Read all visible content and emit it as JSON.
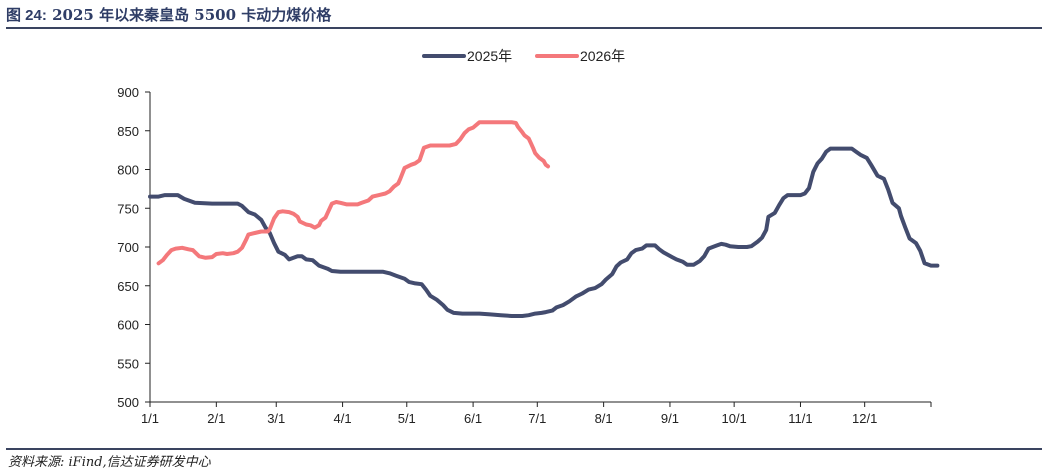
{
  "header": {
    "figure_number": "图 24:",
    "title": "2025 年以来秦皇岛 5500 卡动力煤价格"
  },
  "footer": {
    "source": "资料来源:   iFind,信达证券研发中心"
  },
  "colors": {
    "series_2025": "#434c6e",
    "series_2026": "#f4787b",
    "axis": "#222222",
    "rule": "#3a4460"
  },
  "chart_data": {
    "type": "line",
    "grid": false,
    "legend_position": "top-center",
    "ylim": [
      500,
      900
    ],
    "yticks": [
      500,
      550,
      600,
      650,
      700,
      750,
      800,
      850,
      900
    ],
    "xlim": [
      1,
      366
    ],
    "xticks": [
      {
        "label": "1/1",
        "day": 1
      },
      {
        "label": "2/1",
        "day": 32
      },
      {
        "label": "3/1",
        "day": 60
      },
      {
        "label": "4/1",
        "day": 91
      },
      {
        "label": "5/1",
        "day": 121
      },
      {
        "label": "6/1",
        "day": 152
      },
      {
        "label": "7/1",
        "day": 182
      },
      {
        "label": "8/1",
        "day": 213
      },
      {
        "label": "9/1",
        "day": 244
      },
      {
        "label": "10/1",
        "day": 274
      },
      {
        "label": "11/1",
        "day": 305
      },
      {
        "label": "12/1",
        "day": 335
      }
    ],
    "series": [
      {
        "name": "2025年",
        "points": [
          [
            1,
            765
          ],
          [
            5,
            765
          ],
          [
            8,
            767
          ],
          [
            14,
            767
          ],
          [
            17,
            762
          ],
          [
            22,
            757
          ],
          [
            30,
            756
          ],
          [
            38,
            756
          ],
          [
            40,
            756
          ],
          [
            42,
            756
          ],
          [
            44,
            753
          ],
          [
            47,
            745
          ],
          [
            50,
            742
          ],
          [
            53,
            735
          ],
          [
            55,
            725
          ],
          [
            57,
            718
          ],
          [
            59,
            705
          ],
          [
            61,
            694
          ],
          [
            64,
            690
          ],
          [
            66,
            684
          ],
          [
            70,
            688
          ],
          [
            72,
            688
          ],
          [
            74,
            684
          ],
          [
            77,
            683
          ],
          [
            80,
            676
          ],
          [
            84,
            672
          ],
          [
            86,
            669
          ],
          [
            90,
            668
          ],
          [
            95,
            668
          ],
          [
            100,
            668
          ],
          [
            105,
            668
          ],
          [
            110,
            668
          ],
          [
            113,
            666
          ],
          [
            116,
            663
          ],
          [
            120,
            659
          ],
          [
            122,
            655
          ],
          [
            125,
            653
          ],
          [
            128,
            652
          ],
          [
            130,
            645
          ],
          [
            132,
            637
          ],
          [
            135,
            632
          ],
          [
            138,
            625
          ],
          [
            140,
            619
          ],
          [
            143,
            615
          ],
          [
            147,
            614
          ],
          [
            150,
            614
          ],
          [
            155,
            614
          ],
          [
            160,
            613
          ],
          [
            165,
            612
          ],
          [
            170,
            611
          ],
          [
            175,
            611
          ],
          [
            178,
            612
          ],
          [
            181,
            614
          ],
          [
            184,
            615
          ],
          [
            186,
            616
          ],
          [
            189,
            618
          ],
          [
            191,
            622
          ],
          [
            194,
            625
          ],
          [
            197,
            630
          ],
          [
            200,
            636
          ],
          [
            203,
            640
          ],
          [
            206,
            645
          ],
          [
            209,
            647
          ],
          [
            212,
            652
          ],
          [
            214,
            658
          ],
          [
            217,
            665
          ],
          [
            219,
            675
          ],
          [
            221,
            680
          ],
          [
            224,
            684
          ],
          [
            226,
            692
          ],
          [
            228,
            696
          ],
          [
            231,
            698
          ],
          [
            233,
            702
          ],
          [
            235,
            702
          ],
          [
            237,
            702
          ],
          [
            239,
            697
          ],
          [
            241,
            693
          ],
          [
            243,
            690
          ],
          [
            245,
            687
          ],
          [
            247,
            684
          ],
          [
            250,
            681
          ],
          [
            252,
            677
          ],
          [
            255,
            677
          ],
          [
            258,
            682
          ],
          [
            260,
            688
          ],
          [
            262,
            698
          ],
          [
            264,
            700
          ],
          [
            266,
            702
          ],
          [
            268,
            704
          ],
          [
            270,
            703
          ],
          [
            272,
            701
          ],
          [
            276,
            700
          ],
          [
            280,
            700
          ],
          [
            282,
            701
          ],
          [
            285,
            707
          ],
          [
            287,
            712
          ],
          [
            289,
            722
          ],
          [
            290,
            739
          ],
          [
            293,
            744
          ],
          [
            295,
            754
          ],
          [
            297,
            763
          ],
          [
            299,
            767
          ],
          [
            302,
            767
          ],
          [
            305,
            767
          ],
          [
            307,
            769
          ],
          [
            309,
            776
          ],
          [
            311,
            797
          ],
          [
            313,
            808
          ],
          [
            315,
            814
          ],
          [
            317,
            823
          ],
          [
            319,
            827
          ],
          [
            323,
            827
          ],
          [
            326,
            827
          ],
          [
            329,
            827
          ],
          [
            331,
            823
          ],
          [
            333,
            819
          ],
          [
            336,
            815
          ],
          [
            338,
            806
          ],
          [
            341,
            792
          ],
          [
            344,
            788
          ],
          [
            346,
            774
          ],
          [
            348,
            757
          ],
          [
            351,
            750
          ],
          [
            352,
            740
          ],
          [
            354,
            725
          ],
          [
            356,
            711
          ],
          [
            359,
            705
          ],
          [
            361,
            695
          ],
          [
            363,
            679
          ],
          [
            366,
            676
          ],
          [
            369,
            676
          ]
        ]
      },
      {
        "name": "2026年",
        "points": [
          [
            5,
            679
          ],
          [
            7,
            683
          ],
          [
            9,
            690
          ],
          [
            11,
            696
          ],
          [
            13,
            698
          ],
          [
            16,
            699
          ],
          [
            19,
            697
          ],
          [
            21,
            696
          ],
          [
            24,
            688
          ],
          [
            27,
            686
          ],
          [
            30,
            687
          ],
          [
            32,
            691
          ],
          [
            35,
            692
          ],
          [
            37,
            691
          ],
          [
            40,
            692
          ],
          [
            42,
            694
          ],
          [
            44,
            699
          ],
          [
            46,
            710
          ],
          [
            47,
            716
          ],
          [
            50,
            718
          ],
          [
            53,
            720
          ],
          [
            56,
            720
          ],
          [
            57,
            723
          ],
          [
            59,
            737
          ],
          [
            61,
            745
          ],
          [
            63,
            746
          ],
          [
            66,
            745
          ],
          [
            68,
            743
          ],
          [
            70,
            739
          ],
          [
            71,
            733
          ],
          [
            74,
            729
          ],
          [
            76,
            728
          ],
          [
            78,
            725
          ],
          [
            80,
            728
          ],
          [
            81,
            734
          ],
          [
            83,
            738
          ],
          [
            84,
            744
          ],
          [
            86,
            756
          ],
          [
            88,
            758
          ],
          [
            90,
            757
          ],
          [
            93,
            755
          ],
          [
            96,
            755
          ],
          [
            98,
            755
          ],
          [
            100,
            757
          ],
          [
            103,
            760
          ],
          [
            105,
            765
          ],
          [
            108,
            767
          ],
          [
            111,
            769
          ],
          [
            113,
            772
          ],
          [
            115,
            778
          ],
          [
            117,
            782
          ],
          [
            118,
            788
          ],
          [
            120,
            802
          ],
          [
            123,
            806
          ],
          [
            125,
            808
          ],
          [
            127,
            812
          ],
          [
            129,
            828
          ],
          [
            132,
            831
          ],
          [
            135,
            831
          ],
          [
            138,
            831
          ],
          [
            141,
            831
          ],
          [
            144,
            833
          ],
          [
            146,
            839
          ],
          [
            148,
            847
          ],
          [
            150,
            852
          ],
          [
            152,
            854
          ],
          [
            155,
            861
          ],
          [
            158,
            861
          ],
          [
            162,
            861
          ],
          [
            166,
            861
          ],
          [
            170,
            861
          ],
          [
            172,
            860
          ],
          [
            173,
            855
          ],
          [
            175,
            848
          ],
          [
            176,
            844
          ],
          [
            178,
            840
          ],
          [
            179,
            834
          ],
          [
            180,
            828
          ],
          [
            181,
            821
          ],
          [
            183,
            815
          ],
          [
            185,
            811
          ],
          [
            186,
            806
          ],
          [
            187,
            804
          ]
        ]
      }
    ]
  }
}
